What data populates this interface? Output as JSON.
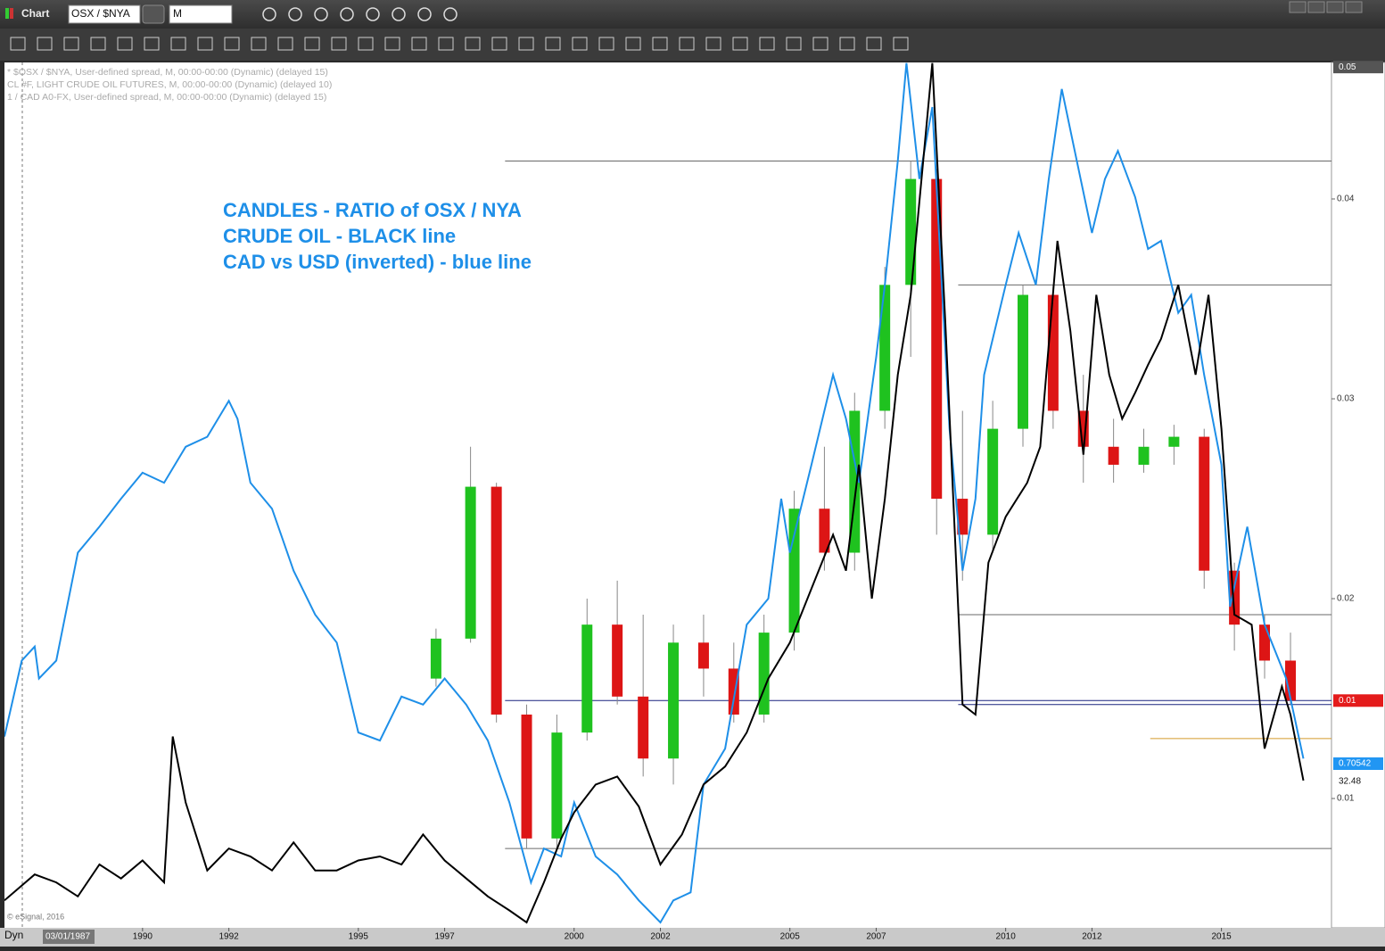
{
  "window": {
    "title": "Chart",
    "symbol": "OSX / $NYA",
    "interval": "M"
  },
  "chart_data": {
    "type": "candlestick",
    "legend": [
      "* $OSX / $NYA, User-defined spread, M, 00:00-00:00 (Dynamic) (delayed 15)",
      "CL #F, LIGHT CRUDE OIL FUTURES, M, 00:00-00:00 (Dynamic) (delayed 10)",
      "1 / CAD A0-FX, User-defined spread, M, 00:00-00:00 (Dynamic) (delayed 15)"
    ],
    "annotation": [
      "CANDLES - RATIO of OSX / NYA",
      "CRUDE OIL - BLACK line",
      "CAD vs USD (inverted) - blue line"
    ],
    "xlim": [
      1986.8,
      2017.55
    ],
    "xticks": [
      1990,
      1992,
      1995,
      1997,
      2000,
      2002,
      2005,
      2007,
      2010,
      2012,
      2015
    ],
    "ylim": [
      0.00353,
      0.04683
    ],
    "yticks": [
      0.04,
      0.03,
      0.02,
      0.01
    ],
    "up_color": "#1fc21f",
    "down_color": "#dd1515",
    "candles": {
      "x": [
        1996.8,
        1997.6,
        1998.2,
        1998.9,
        1999.6,
        2000.3,
        2001.0,
        2001.6,
        2002.3,
        2003.0,
        2003.7,
        2004.4,
        2005.1,
        2005.8,
        2006.5,
        2007.2,
        2007.8,
        2008.4,
        2009.0,
        2009.7,
        2010.4,
        2011.1,
        2011.8,
        2012.5,
        2013.2,
        2013.9,
        2014.6,
        2015.3,
        2016.0,
        2016.6
      ],
      "open": [
        0.016,
        0.018,
        0.0256,
        0.0142,
        0.008,
        0.0133,
        0.0187,
        0.0151,
        0.012,
        0.0178,
        0.0165,
        0.0142,
        0.0183,
        0.0245,
        0.0223,
        0.0294,
        0.0357,
        0.041,
        0.025,
        0.0232,
        0.0285,
        0.0352,
        0.0294,
        0.0276,
        0.0267,
        0.0276,
        0.0281,
        0.0214,
        0.0187,
        0.0169
      ],
      "high": [
        0.0185,
        0.0276,
        0.0258,
        0.0147,
        0.0142,
        0.02,
        0.0209,
        0.0192,
        0.0187,
        0.0192,
        0.0178,
        0.0192,
        0.0254,
        0.0276,
        0.0303,
        0.0366,
        0.0419,
        0.0415,
        0.0294,
        0.0299,
        0.0357,
        0.0357,
        0.0312,
        0.029,
        0.0285,
        0.0287,
        0.0285,
        0.0218,
        0.0192,
        0.0183
      ],
      "low": [
        0.0156,
        0.0178,
        0.0138,
        0.0075,
        0.0075,
        0.0129,
        0.0147,
        0.0111,
        0.0107,
        0.0151,
        0.0138,
        0.0138,
        0.0174,
        0.0214,
        0.0214,
        0.0285,
        0.0321,
        0.0232,
        0.0209,
        0.0223,
        0.0276,
        0.0285,
        0.0258,
        0.0258,
        0.0263,
        0.0267,
        0.0205,
        0.0174,
        0.016,
        0.0147
      ],
      "close": [
        0.018,
        0.0256,
        0.0142,
        0.008,
        0.0133,
        0.0187,
        0.0151,
        0.012,
        0.0178,
        0.0165,
        0.0142,
        0.0183,
        0.0245,
        0.0223,
        0.0294,
        0.0357,
        0.041,
        0.025,
        0.0232,
        0.0285,
        0.0352,
        0.0294,
        0.0276,
        0.0267,
        0.0276,
        0.0281,
        0.0214,
        0.0187,
        0.0169,
        0.0149
      ]
    },
    "series": [
      {
        "color": "#1e8fe8",
        "x": [
          1986.8,
          1987.2,
          1987.5,
          1987.6,
          1988,
          1988.5,
          1989,
          1989.5,
          1990,
          1990.5,
          1991,
          1991.5,
          1992,
          1992.2,
          1992.5,
          1993,
          1993.5,
          1994,
          1994.5,
          1995,
          1995.5,
          1996,
          1996.5,
          1997,
          1997.5,
          1998,
          1998.5,
          1999,
          1999.3,
          1999.7,
          2000,
          2000.5,
          2001,
          2001.5,
          2002,
          2002.3,
          2002.7,
          2003,
          2003.5,
          2004,
          2004.5,
          2004.8,
          2005,
          2005.5,
          2006,
          2006.3,
          2006.6,
          2007,
          2007.2,
          2007.5,
          2007.7,
          2008,
          2008.3,
          2008.7,
          2009,
          2009.3,
          2009.5,
          2010,
          2010.3,
          2010.7,
          2011,
          2011.3,
          2011.6,
          2012,
          2012.3,
          2012.6,
          2013,
          2013.3,
          2013.6,
          2014,
          2014.3,
          2014.6,
          2015,
          2015.2,
          2015.6,
          2016,
          2016.5,
          2016.9
        ],
        "values": [
          0.0131,
          0.0169,
          0.0176,
          0.016,
          0.0169,
          0.0223,
          0.0236,
          0.025,
          0.0263,
          0.0258,
          0.0276,
          0.0281,
          0.0299,
          0.029,
          0.0258,
          0.0245,
          0.0214,
          0.0192,
          0.0178,
          0.0133,
          0.0129,
          0.0151,
          0.0147,
          0.016,
          0.0147,
          0.0129,
          0.0098,
          0.0058,
          0.0075,
          0.0071,
          0.0098,
          0.0071,
          0.0062,
          0.0049,
          0.0038,
          0.0049,
          0.0053,
          0.0107,
          0.0125,
          0.0187,
          0.02,
          0.025,
          0.0223,
          0.0267,
          0.0312,
          0.029,
          0.0258,
          0.0321,
          0.0357,
          0.0419,
          0.0468,
          0.041,
          0.0446,
          0.0285,
          0.0214,
          0.025,
          0.0312,
          0.0357,
          0.0383,
          0.0357,
          0.041,
          0.0455,
          0.0424,
          0.0383,
          0.041,
          0.0424,
          0.0401,
          0.0375,
          0.0379,
          0.0343,
          0.0352,
          0.0312,
          0.0267,
          0.0196,
          0.0236,
          0.0187,
          0.016,
          0.012
        ]
      },
      {
        "color": "#000000",
        "x": [
          1986.8,
          1987.5,
          1988,
          1988.5,
          1989,
          1989.5,
          1990,
          1990.5,
          1990.7,
          1991,
          1991.5,
          1992,
          1992.5,
          1993,
          1993.5,
          1994,
          1994.5,
          1995,
          1995.5,
          1996,
          1996.5,
          1997,
          1997.5,
          1998,
          1998.5,
          1998.9,
          1999.3,
          1999.7,
          2000,
          2000.5,
          2001,
          2001.5,
          2002,
          2002.5,
          2003,
          2003.5,
          2004,
          2004.5,
          2005,
          2005.5,
          2006,
          2006.3,
          2006.6,
          2006.9,
          2007.2,
          2007.5,
          2007.8,
          2008.3,
          2008.6,
          2009,
          2009.3,
          2009.6,
          2010,
          2010.5,
          2010.8,
          2011.2,
          2011.5,
          2011.8,
          2012.1,
          2012.4,
          2012.7,
          2013,
          2013.3,
          2013.6,
          2014,
          2014.4,
          2014.7,
          2015,
          2015.3,
          2015.7,
          2016,
          2016.4,
          2016.6,
          2016.9
        ],
        "values": [
          0.0049,
          0.0062,
          0.0058,
          0.0051,
          0.0067,
          0.006,
          0.0069,
          0.0058,
          0.0131,
          0.0098,
          0.0064,
          0.0075,
          0.0071,
          0.0064,
          0.0078,
          0.0064,
          0.0064,
          0.0069,
          0.0071,
          0.0067,
          0.0082,
          0.0069,
          0.006,
          0.0051,
          0.0044,
          0.0038,
          0.0058,
          0.008,
          0.0093,
          0.0107,
          0.0111,
          0.0096,
          0.0067,
          0.0082,
          0.0107,
          0.0116,
          0.0133,
          0.016,
          0.0178,
          0.0205,
          0.0232,
          0.0214,
          0.0267,
          0.02,
          0.025,
          0.0312,
          0.0352,
          0.0468,
          0.0339,
          0.0147,
          0.0142,
          0.0218,
          0.0241,
          0.0258,
          0.0276,
          0.0379,
          0.0334,
          0.0272,
          0.0352,
          0.0312,
          0.029,
          0.0303,
          0.0317,
          0.033,
          0.0357,
          0.0312,
          0.0352,
          0.0285,
          0.0192,
          0.0187,
          0.0125,
          0.0156,
          0.0142,
          0.0109
        ]
      }
    ],
    "hlines": [
      {
        "value": 0.0419,
        "from": 1998.4,
        "color": "#6a6a6a"
      },
      {
        "value": 0.0357,
        "from": 2008.9,
        "color": "#6a6a6a"
      },
      {
        "value": 0.0192,
        "from": 2008.9,
        "color": "#6a6a6a"
      },
      {
        "value": 0.0149,
        "from": 1998.4,
        "color": "#1a237e"
      },
      {
        "value": 0.0147,
        "from": 2008.9,
        "color": "#1a237e"
      },
      {
        "value": 0.013,
        "from": 2013.35,
        "color": "#d49a2a"
      },
      {
        "value": 0.0075,
        "from": 1998.4,
        "color": "#6a6a6a"
      }
    ],
    "price_boxes": [
      {
        "value": 0.0466,
        "label": "0.05",
        "color": "#555555"
      },
      {
        "value": 0.0149,
        "label": "0.01",
        "color": "#e41b1b"
      }
    ],
    "other_labels": [
      {
        "label": "0.70542",
        "color": "#2196f3"
      },
      {
        "label": "32.48"
      }
    ]
  },
  "footer": {
    "mode": "Dyn",
    "start_date": "03/01/1987"
  },
  "copyright": "© eSignal, 2016"
}
